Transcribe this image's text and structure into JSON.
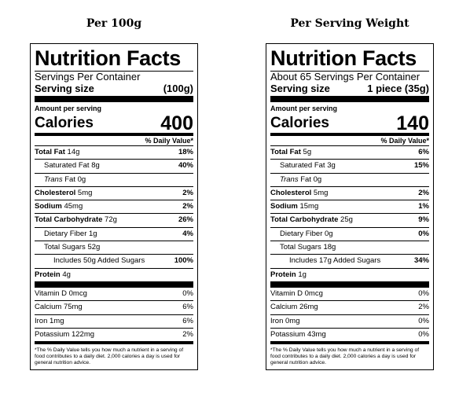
{
  "left": {
    "heading": "Per 100g",
    "title": "Nutrition Facts",
    "servings": "Servings Per Container",
    "serving_size_label": "Serving size",
    "serving_size_value": "(100g)",
    "amount_label": "Amount per serving",
    "calories_label": "Calories",
    "calories_value": "400",
    "dv_header": "% Daily Value*",
    "total_fat": {
      "name": "Total Fat",
      "amt": "14g",
      "pct": "18%"
    },
    "sat_fat": {
      "name": "Saturated Fat",
      "amt": "8g",
      "pct": "40%"
    },
    "trans_fat": {
      "name": "Trans",
      "rest": "Fat 0g"
    },
    "cholesterol": {
      "name": "Cholesterol",
      "amt": "5mg",
      "pct": "2%"
    },
    "sodium": {
      "name": "Sodium",
      "amt": "45mg",
      "pct": "2%"
    },
    "carb": {
      "name": "Total Carbohydrate",
      "amt": "72g",
      "pct": "26%"
    },
    "fiber": {
      "name": "Dietary Fiber",
      "amt": "1g",
      "pct": "4%"
    },
    "sugars": {
      "name": "Total Sugars",
      "amt": "52g"
    },
    "added": {
      "text": "Includes 50g Added Sugars",
      "pct": "100%"
    },
    "protein": {
      "name": "Protein",
      "amt": "4g"
    },
    "vitd": {
      "text": "Vitamin D 0mcg",
      "pct": "0%"
    },
    "calcium": {
      "text": "Calcium 75mg",
      "pct": "6%"
    },
    "iron": {
      "text": "Iron 1mg",
      "pct": "6%"
    },
    "potassium": {
      "text": "Potassium 122mg",
      "pct": "2%"
    },
    "footnote": "*The % Daily Value tells you how much a nutrient in a serving of food contributes to a daily diet. 2,000 calories a day is used for general nutrition advice."
  },
  "right": {
    "heading": "Per Serving Weight",
    "title": "Nutrition Facts",
    "servings": "About 65 Servings Per Container",
    "serving_size_label": "Serving size",
    "serving_size_value": "1 piece (35g)",
    "amount_label": "Amount per serving",
    "calories_label": "Calories",
    "calories_value": "140",
    "dv_header": "% Daily Value*",
    "total_fat": {
      "name": "Total Fat",
      "amt": "5g",
      "pct": "6%"
    },
    "sat_fat": {
      "name": "Saturated Fat",
      "amt": "3g",
      "pct": "15%"
    },
    "trans_fat": {
      "name": "Trans",
      "rest": "Fat 0g"
    },
    "cholesterol": {
      "name": "Cholesterol",
      "amt": "5mg",
      "pct": "2%"
    },
    "sodium": {
      "name": "Sodium",
      "amt": "15mg",
      "pct": "1%"
    },
    "carb": {
      "name": "Total Carbohydrate",
      "amt": "25g",
      "pct": "9%"
    },
    "fiber": {
      "name": "Dietary Fiber",
      "amt": "0g",
      "pct": "0%"
    },
    "sugars": {
      "name": "Total Sugars",
      "amt": "18g"
    },
    "added": {
      "text": "Includes 17g Added Sugars",
      "pct": "34%"
    },
    "protein": {
      "name": "Protein",
      "amt": "1g"
    },
    "vitd": {
      "text": "Vitamin D 0mcg",
      "pct": "0%"
    },
    "calcium": {
      "text": "Calcium 26mg",
      "pct": "2%"
    },
    "iron": {
      "text": "Iron 0mg",
      "pct": "0%"
    },
    "potassium": {
      "text": "Potassium 43mg",
      "pct": "0%"
    },
    "footnote": "*The % Daily Value tells you how much a nutrient in a serving of food contributes to a daily diet. 2,000 calories a day is used for general nutrition advice."
  }
}
